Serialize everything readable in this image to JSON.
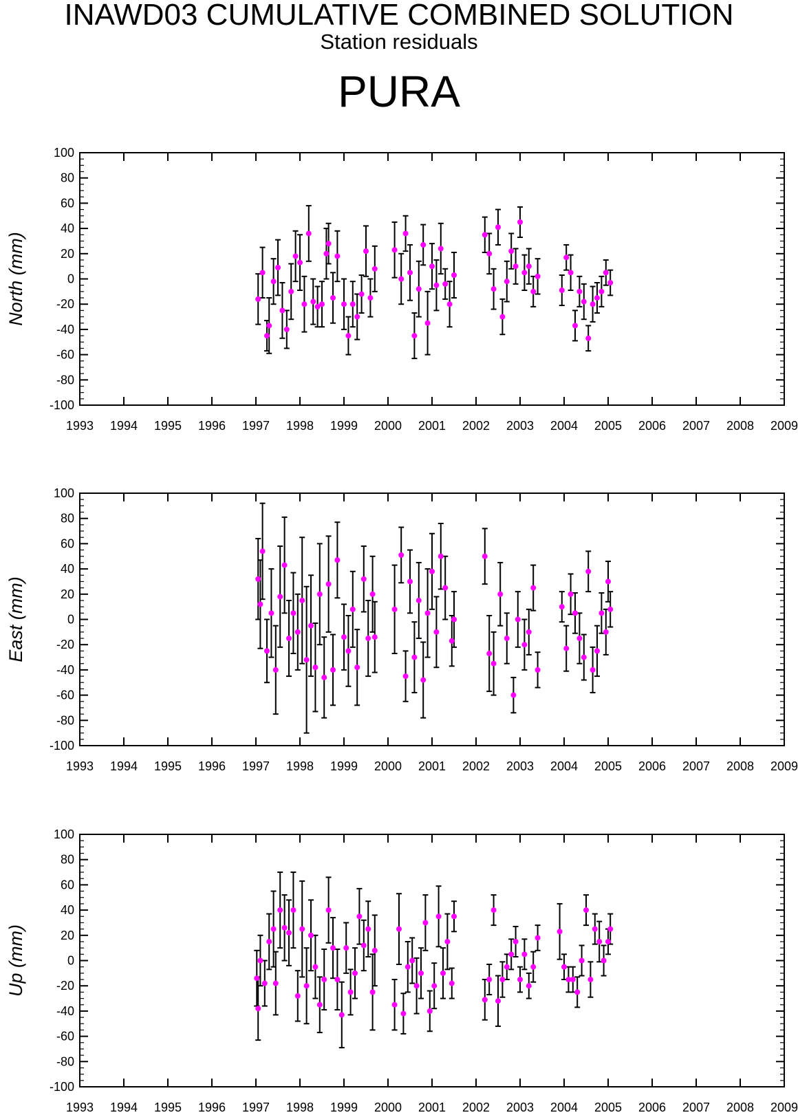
{
  "header": {
    "title": "INAWD03 CUMULATIVE COMBINED SOLUTION",
    "subtitle": "Station residuals",
    "station": "PURA"
  },
  "colors": {
    "point": "#ff00ff",
    "errorbar": "#000000",
    "axis": "#000000"
  },
  "chart_data": [
    {
      "type": "scatter",
      "ylabel": "North (mm)",
      "xlim": [
        1993,
        2009
      ],
      "ylim": [
        -100,
        100
      ],
      "xticks": [
        "1993",
        "1994",
        "1995",
        "1996",
        "1997",
        "1998",
        "1999",
        "2000",
        "2001",
        "2002",
        "2003",
        "2004",
        "2005",
        "2006",
        "2007",
        "2008",
        "2009"
      ],
      "yticks": [
        "100",
        "80",
        "60",
        "40",
        "20",
        "0",
        "-20",
        "-40",
        "-60",
        "-80",
        "-100"
      ],
      "grid": false,
      "error_bars": true,
      "x": [
        1997.05,
        1997.15,
        1997.25,
        1997.3,
        1997.4,
        1997.5,
        1997.6,
        1997.7,
        1997.8,
        1997.9,
        1998.0,
        1998.1,
        1998.2,
        1998.3,
        1998.4,
        1998.5,
        1998.6,
        1998.65,
        1998.75,
        1998.85,
        1999.0,
        1999.1,
        1999.2,
        1999.3,
        1999.4,
        1999.5,
        1999.6,
        1999.7,
        2000.15,
        2000.3,
        2000.4,
        2000.5,
        2000.6,
        2000.7,
        2000.8,
        2000.9,
        2001.0,
        2001.1,
        2001.2,
        2001.3,
        2001.4,
        2001.5,
        2002.2,
        2002.3,
        2002.4,
        2002.5,
        2002.6,
        2002.7,
        2002.8,
        2002.9,
        2003.0,
        2003.1,
        2003.2,
        2003.3,
        2003.4,
        2003.95,
        2004.05,
        2004.15,
        2004.25,
        2004.35,
        2004.45,
        2004.55,
        2004.65,
        2004.75,
        2004.85,
        2004.95,
        2005.05
      ],
      "y": [
        -16,
        5,
        -45,
        -37,
        -2,
        9,
        -25,
        -40,
        -10,
        18,
        13,
        -20,
        36,
        -18,
        -22,
        -20,
        20,
        28,
        -15,
        18,
        -20,
        -45,
        -20,
        -30,
        -12,
        22,
        -15,
        8,
        23,
        0,
        36,
        5,
        -45,
        -8,
        27,
        -35,
        10,
        -5,
        24,
        -4,
        -20,
        3,
        35,
        20,
        -8,
        41,
        -30,
        -2,
        22,
        10,
        45,
        5,
        10,
        -10,
        2,
        -9,
        17,
        5,
        -37,
        -10,
        -18,
        -47,
        -20,
        -15,
        -10,
        5,
        -3
      ],
      "err": [
        20,
        20,
        12,
        22,
        18,
        22,
        22,
        15,
        22,
        20,
        22,
        22,
        22,
        18,
        16,
        18,
        20,
        16,
        20,
        20,
        20,
        15,
        18,
        18,
        15,
        20,
        15,
        18,
        22,
        20,
        14,
        22,
        18,
        22,
        16,
        25,
        18,
        20,
        20,
        12,
        18,
        18,
        14,
        16,
        16,
        14,
        14,
        16,
        14,
        14,
        12,
        14,
        14,
        12,
        14,
        12,
        10,
        14,
        12,
        12,
        14,
        10,
        14,
        12,
        12,
        10,
        10
      ]
    },
    {
      "type": "scatter",
      "ylabel": "East (mm)",
      "xlim": [
        1993,
        2009
      ],
      "ylim": [
        -100,
        100
      ],
      "xticks": [
        "1993",
        "1994",
        "1995",
        "1996",
        "1997",
        "1998",
        "1999",
        "2000",
        "2001",
        "2002",
        "2003",
        "2004",
        "2005",
        "2006",
        "2007",
        "2008",
        "2009"
      ],
      "yticks": [
        "100",
        "80",
        "60",
        "40",
        "20",
        "0",
        "-20",
        "-40",
        "-60",
        "-80",
        "-100"
      ],
      "grid": false,
      "error_bars": true,
      "x": [
        1997.05,
        1997.1,
        1997.15,
        1997.25,
        1997.35,
        1997.45,
        1997.55,
        1997.65,
        1997.75,
        1997.85,
        1997.95,
        1998.05,
        1998.15,
        1998.25,
        1998.35,
        1998.45,
        1998.55,
        1998.65,
        1998.75,
        1998.85,
        1999.0,
        1999.1,
        1999.2,
        1999.3,
        1999.45,
        1999.55,
        1999.65,
        1999.7,
        2000.15,
        2000.3,
        2000.4,
        2000.5,
        2000.6,
        2000.7,
        2000.8,
        2000.9,
        2001.0,
        2001.1,
        2001.2,
        2001.3,
        2001.45,
        2001.5,
        2002.2,
        2002.3,
        2002.4,
        2002.55,
        2002.7,
        2002.85,
        2002.95,
        2003.1,
        2003.2,
        2003.3,
        2003.4,
        2003.95,
        2004.05,
        2004.15,
        2004.25,
        2004.35,
        2004.45,
        2004.55,
        2004.65,
        2004.75,
        2004.85,
        2004.95,
        2005.0,
        2005.05
      ],
      "y": [
        32,
        12,
        54,
        -25,
        5,
        -40,
        18,
        43,
        -15,
        5,
        -10,
        15,
        -32,
        -5,
        -38,
        20,
        -46,
        28,
        -40,
        47,
        -14,
        -25,
        8,
        -38,
        32,
        -15,
        20,
        -14,
        8,
        51,
        -45,
        30,
        -30,
        15,
        -48,
        5,
        38,
        -10,
        50,
        25,
        -17,
        0,
        50,
        -27,
        -35,
        20,
        -15,
        -60,
        0,
        -20,
        -10,
        25,
        -40,
        10,
        -23,
        20,
        5,
        -15,
        -30,
        38,
        -40,
        -25,
        5,
        -10,
        30,
        8
      ],
      "err": [
        32,
        35,
        38,
        25,
        35,
        35,
        40,
        38,
        30,
        32,
        30,
        50,
        58,
        40,
        35,
        40,
        32,
        38,
        28,
        30,
        26,
        28,
        30,
        30,
        26,
        30,
        30,
        28,
        35,
        22,
        20,
        25,
        28,
        30,
        30,
        35,
        30,
        28,
        26,
        25,
        20,
        22,
        22,
        30,
        25,
        25,
        20,
        14,
        22,
        20,
        18,
        18,
        14,
        12,
        18,
        16,
        16,
        20,
        18,
        16,
        18,
        20,
        16,
        18,
        16,
        14
      ]
    },
    {
      "type": "scatter",
      "ylabel": "Up (mm)",
      "xlim": [
        1993,
        2009
      ],
      "ylim": [
        -100,
        100
      ],
      "xticks": [
        "1993",
        "1994",
        "1995",
        "1996",
        "1997",
        "1998",
        "1999",
        "2000",
        "2001",
        "2002",
        "2003",
        "2004",
        "2005",
        "2006",
        "2007",
        "2008",
        "2009"
      ],
      "yticks": [
        "100",
        "80",
        "60",
        "40",
        "20",
        "0",
        "-20",
        "-40",
        "-60",
        "-80",
        "-100"
      ],
      "grid": false,
      "error_bars": true,
      "x": [
        1997.02,
        1997.05,
        1997.1,
        1997.2,
        1997.3,
        1997.4,
        1997.45,
        1997.55,
        1997.65,
        1997.75,
        1997.85,
        1997.95,
        1998.05,
        1998.15,
        1998.25,
        1998.35,
        1998.45,
        1998.55,
        1998.65,
        1998.75,
        1998.85,
        1998.95,
        1999.05,
        1999.15,
        1999.25,
        1999.35,
        1999.45,
        1999.55,
        1999.65,
        1999.7,
        2000.15,
        2000.25,
        2000.35,
        2000.45,
        2000.55,
        2000.65,
        2000.75,
        2000.85,
        2000.95,
        2001.05,
        2001.15,
        2001.25,
        2001.35,
        2001.45,
        2001.5,
        2002.2,
        2002.3,
        2002.4,
        2002.5,
        2002.6,
        2002.7,
        2002.8,
        2002.9,
        2003.0,
        2003.1,
        2003.2,
        2003.3,
        2003.4,
        2003.9,
        2004.0,
        2004.1,
        2004.2,
        2004.3,
        2004.4,
        2004.5,
        2004.6,
        2004.7,
        2004.8,
        2004.9,
        2005.0,
        2005.05
      ],
      "y": [
        -14,
        -38,
        0,
        -18,
        15,
        25,
        -18,
        40,
        26,
        22,
        40,
        -28,
        25,
        -20,
        20,
        -5,
        -35,
        -15,
        40,
        10,
        -15,
        -43,
        10,
        -25,
        -10,
        35,
        12,
        25,
        -25,
        8,
        -35,
        25,
        -42,
        -5,
        0,
        -20,
        -10,
        30,
        -40,
        -20,
        35,
        -10,
        15,
        -18,
        35,
        -31,
        -15,
        40,
        -32,
        -15,
        -5,
        5,
        15,
        -15,
        5,
        -20,
        -5,
        18,
        23,
        -5,
        -15,
        -15,
        -25,
        0,
        40,
        -15,
        25,
        15,
        0,
        15,
        25
      ],
      "err": [
        22,
        25,
        20,
        18,
        22,
        30,
        25,
        30,
        26,
        26,
        30,
        20,
        38,
        30,
        28,
        25,
        22,
        24,
        26,
        24,
        24,
        26,
        20,
        18,
        20,
        22,
        20,
        22,
        30,
        28,
        20,
        28,
        16,
        20,
        18,
        22,
        20,
        22,
        16,
        18,
        24,
        20,
        22,
        12,
        12,
        16,
        12,
        12,
        20,
        14,
        10,
        12,
        12,
        10,
        12,
        10,
        12,
        10,
        22,
        10,
        10,
        10,
        12,
        12,
        12,
        14,
        12,
        16,
        12,
        10,
        12
      ]
    }
  ]
}
